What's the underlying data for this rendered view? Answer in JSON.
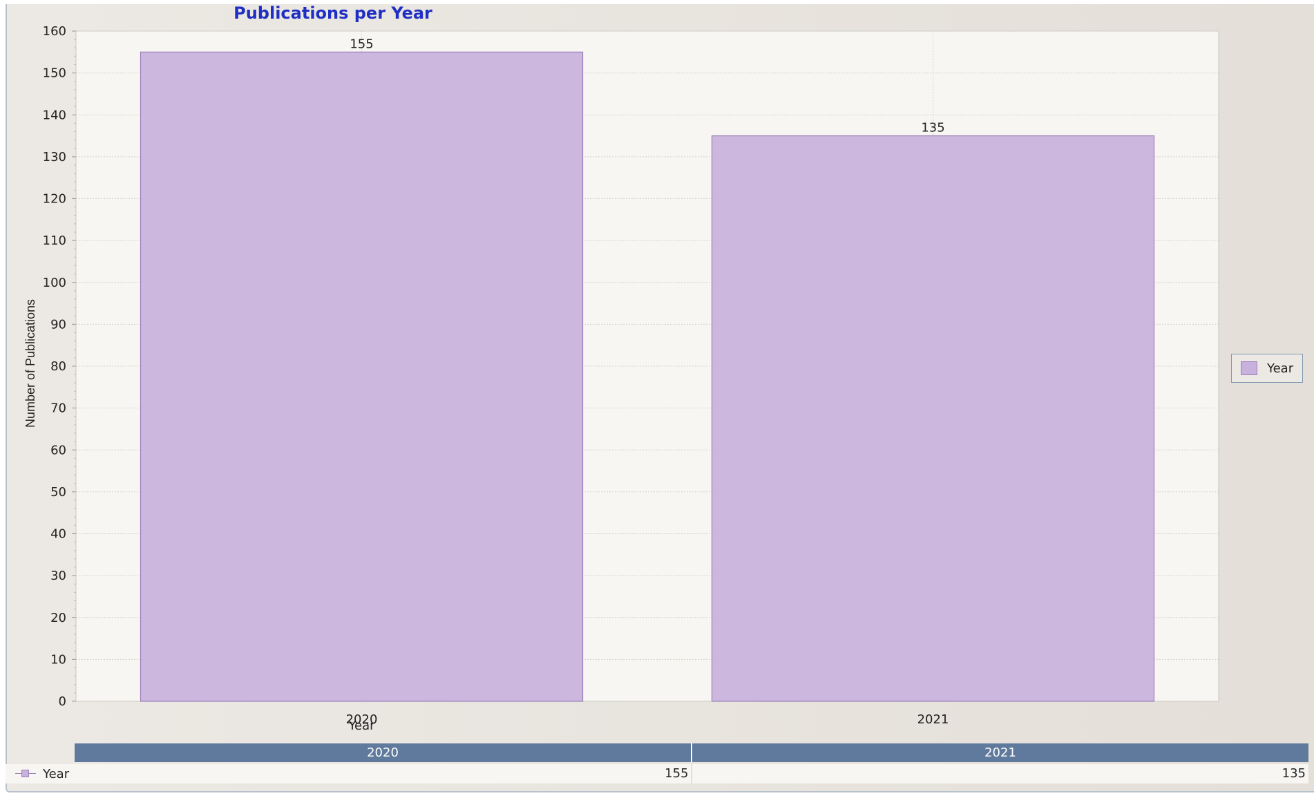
{
  "chart_data": {
    "type": "bar",
    "title": "Publications per Year",
    "xlabel": "Year",
    "ylabel": "Number of Publications",
    "categories": [
      "2020",
      "2021"
    ],
    "series": [
      {
        "name": "Year",
        "values": [
          155,
          135
        ]
      }
    ],
    "ylim": [
      0,
      160
    ],
    "y_ticks": [
      0,
      10,
      20,
      30,
      40,
      50,
      60,
      70,
      80,
      90,
      100,
      110,
      120,
      130,
      140,
      150,
      160
    ],
    "grid": true,
    "legend_position": "right",
    "data_labels": true
  },
  "colors": {
    "bar_fill": "#c8b2dd",
    "bar_stroke": "#9b7fb8",
    "title": "#1f2fc4",
    "plot_bg": "#f7f6f2",
    "table_header": "#5f7a9c"
  },
  "legend": {
    "label": "Year"
  },
  "table": {
    "columns": [
      "2020",
      "2021"
    ],
    "rows": [
      {
        "series": "Year",
        "values": [
          "155",
          "135"
        ]
      }
    ]
  }
}
